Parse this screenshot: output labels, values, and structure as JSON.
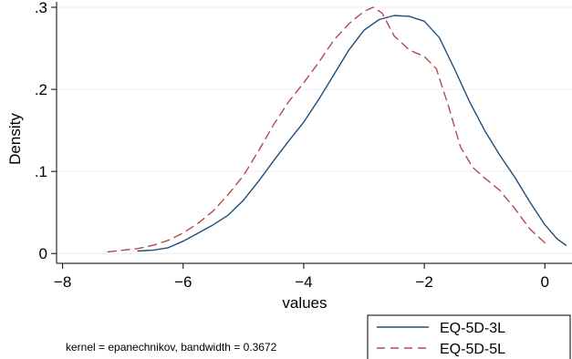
{
  "chart_data": {
    "type": "line",
    "title": "",
    "xlabel": "values",
    "ylabel": "Density",
    "xlim": [
      -8.1,
      0.45
    ],
    "ylim": [
      -0.012,
      0.3
    ],
    "grid": "horizontal",
    "x_ticks": [
      {
        "value": -8,
        "label": "−8"
      },
      {
        "value": -6,
        "label": "−6"
      },
      {
        "value": -4,
        "label": "−4"
      },
      {
        "value": -2,
        "label": "−2"
      },
      {
        "value": 0,
        "label": "0"
      }
    ],
    "y_ticks": [
      {
        "value": 0,
        "label": "0"
      },
      {
        "value": 0.1,
        "label": ".1"
      },
      {
        "value": 0.2,
        "label": ".2"
      },
      {
        "value": 0.3,
        "label": ".3"
      }
    ],
    "note": "kernel = epanechnikov, bandwidth = 0.3672",
    "legend": "bottom-right",
    "series": [
      {
        "name": "EQ-5D-3L",
        "color": "#1f4e79",
        "dash": "solid",
        "points": [
          [
            -6.75,
            0.003
          ],
          [
            -6.5,
            0.004
          ],
          [
            -6.25,
            0.007
          ],
          [
            -6.0,
            0.015
          ],
          [
            -5.75,
            0.025
          ],
          [
            -5.5,
            0.035
          ],
          [
            -5.25,
            0.047
          ],
          [
            -5.0,
            0.065
          ],
          [
            -4.75,
            0.088
          ],
          [
            -4.5,
            0.113
          ],
          [
            -4.25,
            0.137
          ],
          [
            -4.0,
            0.16
          ],
          [
            -3.75,
            0.188
          ],
          [
            -3.5,
            0.218
          ],
          [
            -3.25,
            0.248
          ],
          [
            -3.0,
            0.272
          ],
          [
            -2.75,
            0.285
          ],
          [
            -2.5,
            0.29
          ],
          [
            -2.25,
            0.289
          ],
          [
            -2.0,
            0.283
          ],
          [
            -1.75,
            0.263
          ],
          [
            -1.5,
            0.225
          ],
          [
            -1.25,
            0.185
          ],
          [
            -1.0,
            0.15
          ],
          [
            -0.75,
            0.12
          ],
          [
            -0.5,
            0.093
          ],
          [
            -0.25,
            0.063
          ],
          [
            0.0,
            0.035
          ],
          [
            0.2,
            0.018
          ],
          [
            0.35,
            0.01
          ]
        ]
      },
      {
        "name": "EQ-5D-5L",
        "color": "#b5484e",
        "dash": "dashed",
        "points": [
          [
            -7.25,
            0.002
          ],
          [
            -7.0,
            0.004
          ],
          [
            -6.75,
            0.006
          ],
          [
            -6.5,
            0.01
          ],
          [
            -6.25,
            0.016
          ],
          [
            -6.0,
            0.025
          ],
          [
            -5.75,
            0.037
          ],
          [
            -5.5,
            0.052
          ],
          [
            -5.25,
            0.072
          ],
          [
            -5.0,
            0.095
          ],
          [
            -4.75,
            0.125
          ],
          [
            -4.5,
            0.157
          ],
          [
            -4.25,
            0.185
          ],
          [
            -4.0,
            0.208
          ],
          [
            -3.75,
            0.233
          ],
          [
            -3.5,
            0.26
          ],
          [
            -3.25,
            0.28
          ],
          [
            -3.0,
            0.295
          ],
          [
            -2.85,
            0.3
          ],
          [
            -2.7,
            0.293
          ],
          [
            -2.5,
            0.265
          ],
          [
            -2.25,
            0.248
          ],
          [
            -2.0,
            0.24
          ],
          [
            -1.8,
            0.225
          ],
          [
            -1.6,
            0.18
          ],
          [
            -1.4,
            0.13
          ],
          [
            -1.2,
            0.105
          ],
          [
            -1.0,
            0.092
          ],
          [
            -0.75,
            0.077
          ],
          [
            -0.5,
            0.055
          ],
          [
            -0.25,
            0.03
          ],
          [
            0.0,
            0.013
          ]
        ]
      }
    ]
  }
}
